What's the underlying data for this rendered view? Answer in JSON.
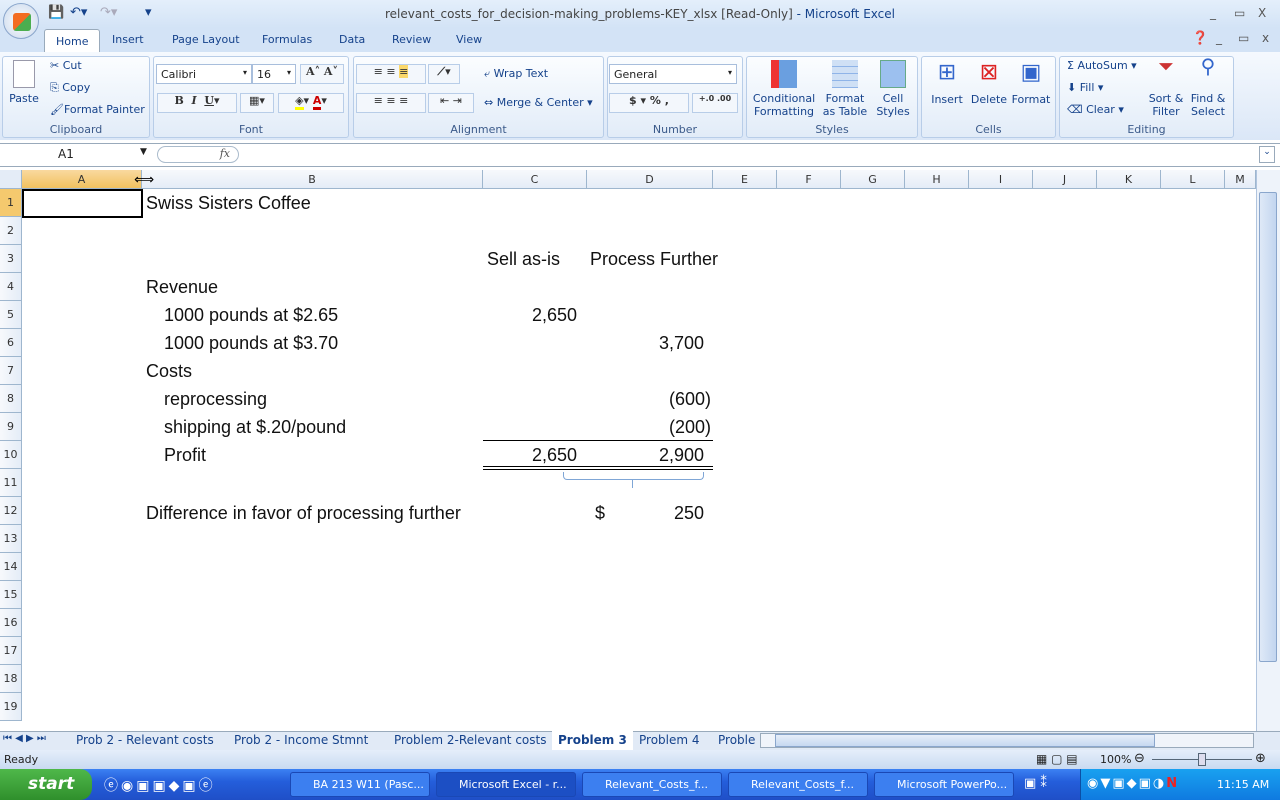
{
  "window": {
    "title": "relevant_costs_for_decision-making_problems-KEY_xlsx  [Read-Only]",
    "app": " - Microsoft Excel",
    "minimize": "_",
    "restore": "▭",
    "close": "X"
  },
  "ribbon_tabs": [
    "Home",
    "Insert",
    "Page Layout",
    "Formulas",
    "Data",
    "Review",
    "View"
  ],
  "clipboard": {
    "paste": "Paste",
    "cut": "Cut",
    "copy": "Copy",
    "format_painter": "Format Painter",
    "label": "Clipboard"
  },
  "font": {
    "name": "Calibri",
    "size": "16",
    "bold": "B",
    "italic": "I",
    "underline": "U",
    "label": "Font"
  },
  "alignment": {
    "wrap": "Wrap Text",
    "merge": "Merge & Center",
    "label": "Alignment"
  },
  "number": {
    "format": "General",
    "currency": "$",
    "percent": "%",
    "comma": ",",
    "inc": "+.0",
    "dec": ".00",
    "label": "Number"
  },
  "styles": {
    "conditional": "Conditional Formatting",
    "table": "Format as Table",
    "cell": "Cell Styles",
    "label": "Styles"
  },
  "cells": {
    "insert": "Insert",
    "delete": "Delete",
    "format": "Format",
    "label": "Cells"
  },
  "editing": {
    "autosum": "AutoSum",
    "fill": "Fill",
    "clear": "Clear",
    "sort": "Sort & Filter",
    "find": "Find & Select",
    "label": "Editing"
  },
  "formula_bar": {
    "name_box": "A1",
    "fx": "fx",
    "value": ""
  },
  "columns": [
    "A",
    "B",
    "C",
    "D",
    "E",
    "F",
    "G",
    "H",
    "I",
    "J",
    "K",
    "L",
    "M"
  ],
  "rows": [
    "1",
    "2",
    "3",
    "4",
    "5",
    "6",
    "7",
    "8",
    "9",
    "10",
    "11",
    "12",
    "13",
    "14",
    "15",
    "16",
    "17",
    "18",
    "19"
  ],
  "sheet": {
    "b1": "Swiss Sisters Coffee",
    "c3": "Sell as-is",
    "d3": "Process Further",
    "b4": "Revenue",
    "b5": "1000 pounds at $2.65",
    "c5": "2,650",
    "b6": "1000 pounds at $3.70",
    "d6": "3,700",
    "b7": "Costs",
    "b8": "reprocessing",
    "d8": "(600)",
    "b9": "shipping at $.20/pound",
    "d9": "(200)",
    "b10": "Profit",
    "c10": "2,650",
    "d10": "2,900",
    "b12": "Difference in favor of processing further",
    "d12_sym": "$",
    "d12": "250"
  },
  "sheet_tabs": [
    "Prob 2 - Relevant costs",
    "Prob 2 - Income Stmnt",
    "Problem 2-Relevant costs",
    "Problem 3",
    "Problem 4",
    "Proble"
  ],
  "active_sheet": "Problem 3",
  "status": {
    "ready": "Ready",
    "zoom": "100%"
  },
  "taskbar": {
    "start": "start",
    "tasks": [
      "BA 213 W11 (Pasc...",
      "Microsoft Excel - r...",
      "Relevant_Costs_f...",
      "Relevant_Costs_f...",
      "Microsoft PowerPo..."
    ],
    "active_task": "Microsoft Excel - r...",
    "clock": "11:15 AM"
  }
}
